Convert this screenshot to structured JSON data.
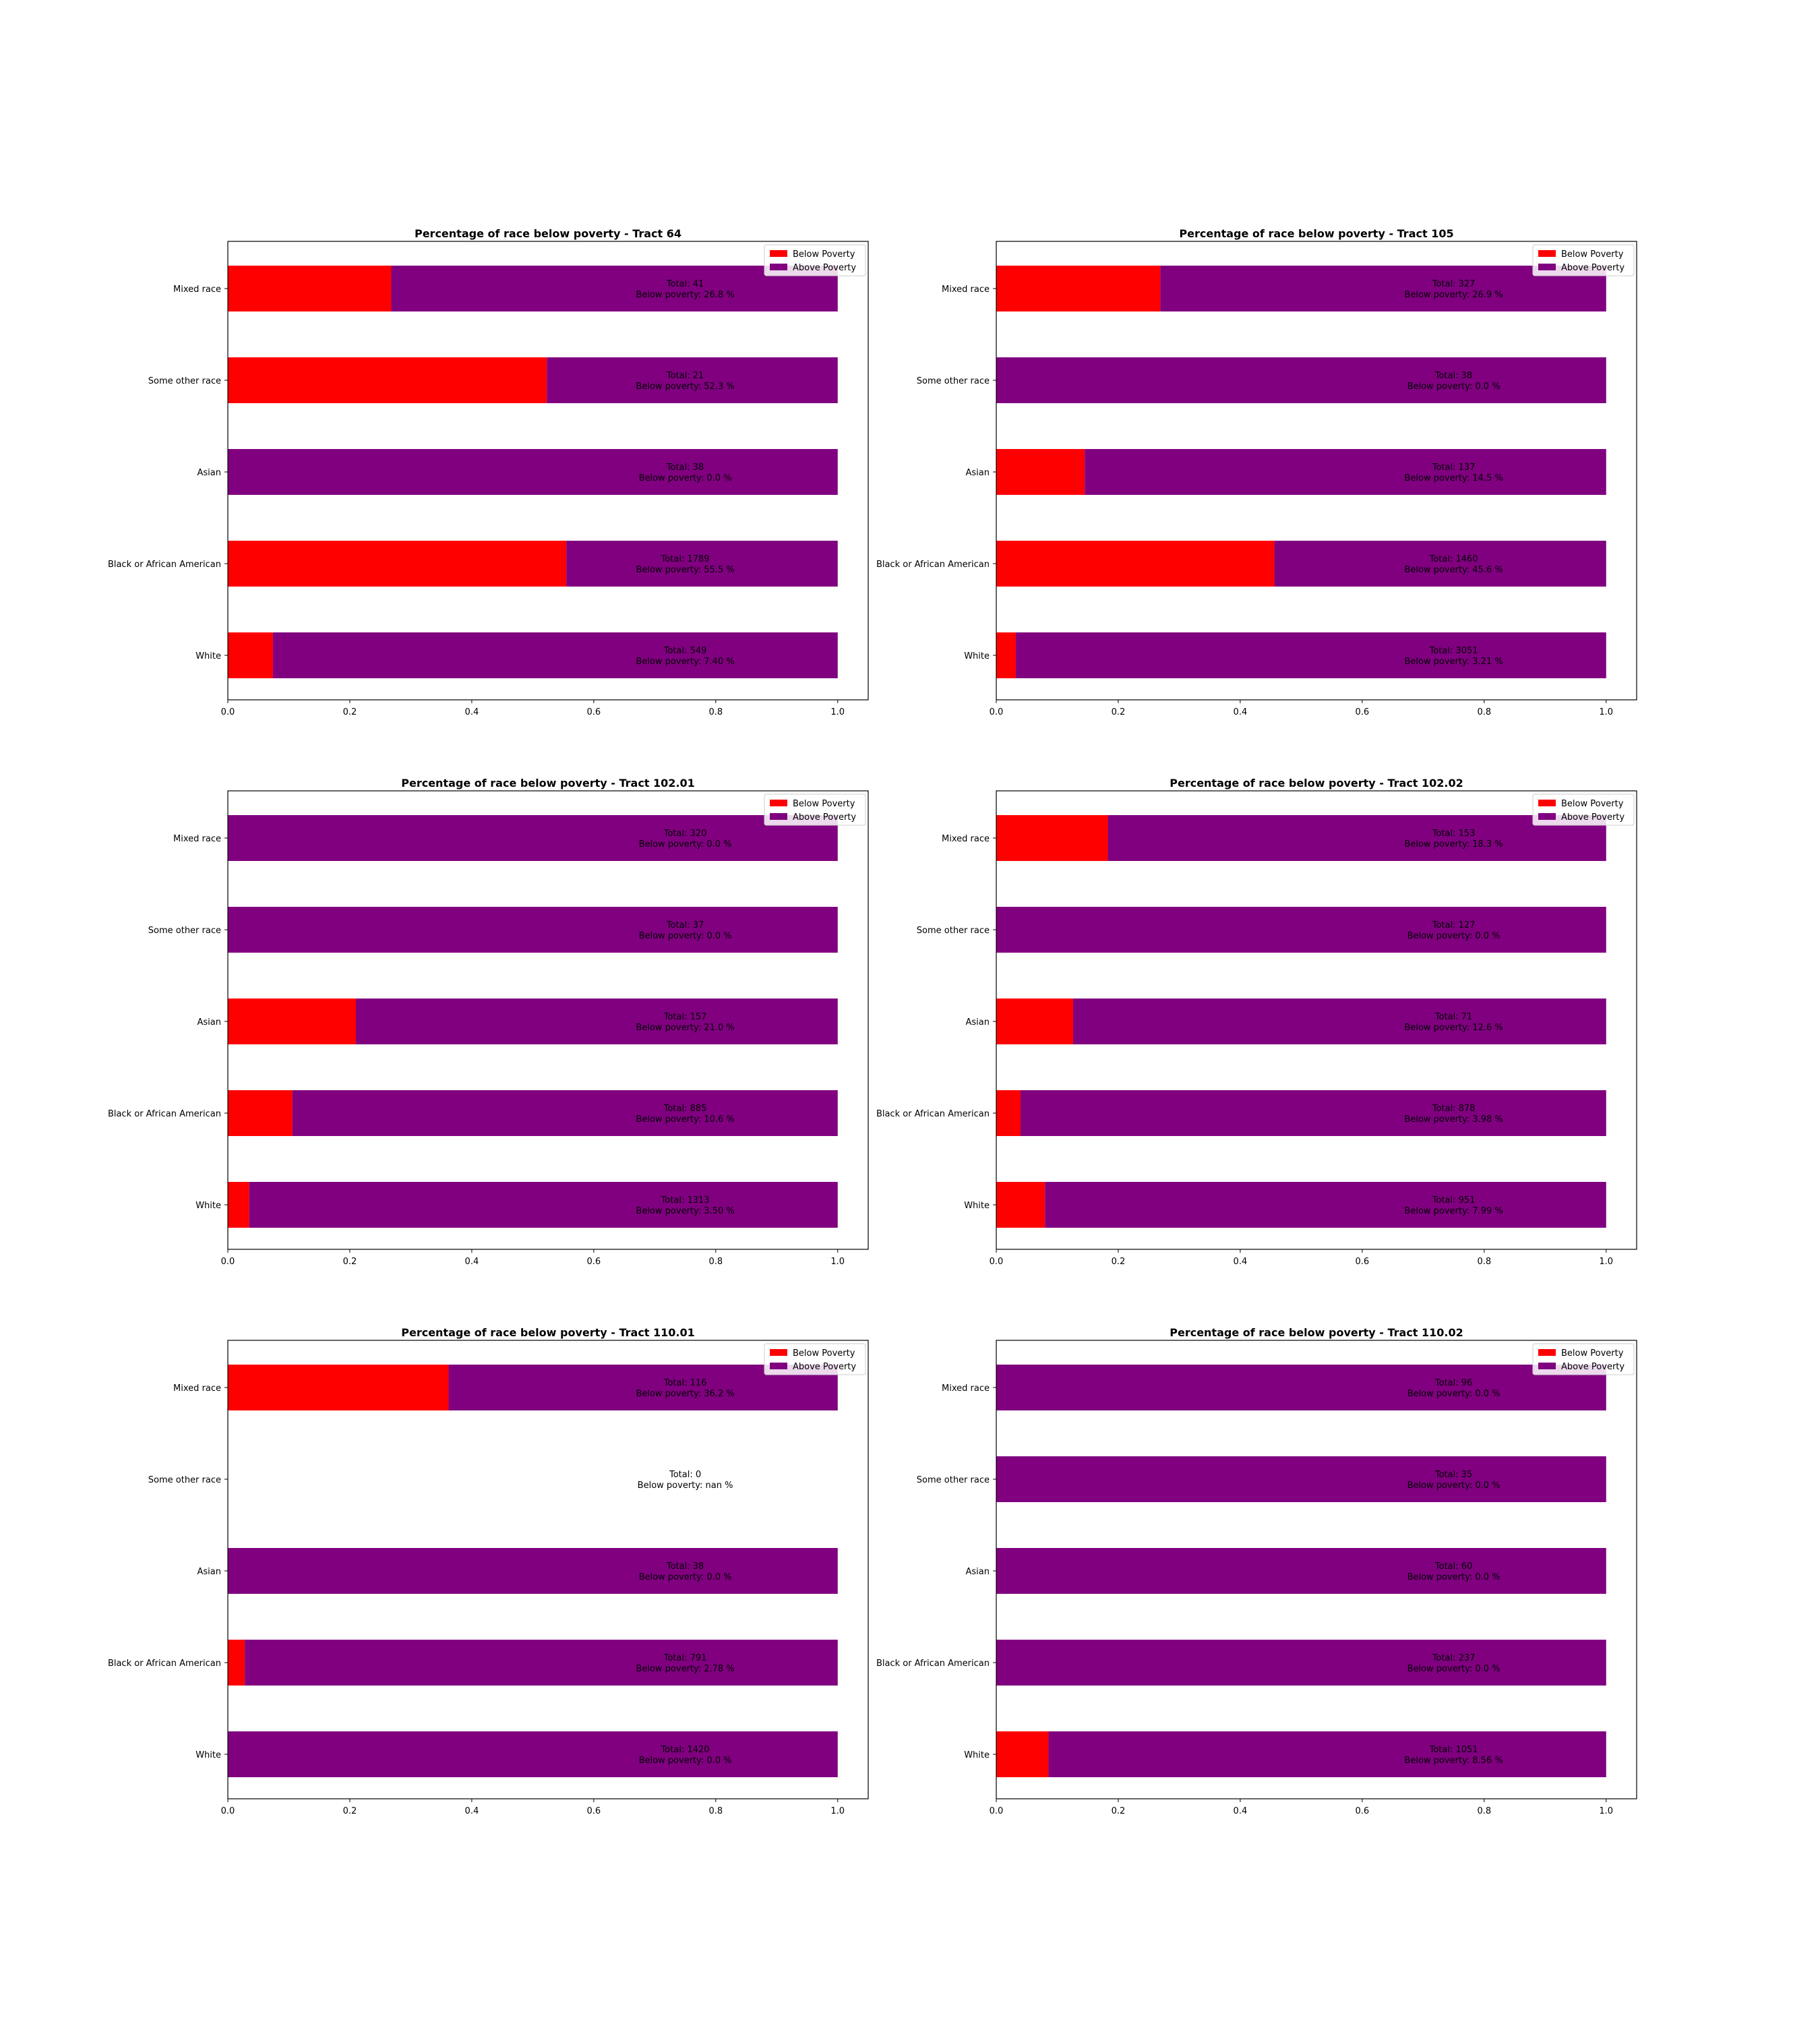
{
  "colors": {
    "below": "#ff0000",
    "above": "#800080",
    "axis": "#000000"
  },
  "legend": {
    "below_label": "Below Poverty",
    "above_label": "Above Poverty",
    "placement": "top-right"
  },
  "chart_data": [
    {
      "type": "bar",
      "orientation": "horizontal-stacked",
      "title": "Percentage of race below poverty - Tract 64",
      "categories": [
        "Mixed race",
        "Some other race",
        "Asian",
        "Black or African American",
        "White"
      ],
      "series": [
        {
          "name": "Below Poverty",
          "values": [
            0.268,
            0.523,
            0.0,
            0.555,
            0.074
          ]
        },
        {
          "name": "Above Poverty",
          "values": [
            0.732,
            0.477,
            1.0,
            0.445,
            0.926
          ]
        }
      ],
      "annotations": [
        {
          "total": "Total: 41",
          "below": "Below poverty: 26.8 %"
        },
        {
          "total": "Total: 21",
          "below": "Below poverty: 52.3 %"
        },
        {
          "total": "Total: 38",
          "below": "Below poverty: 0.0 %"
        },
        {
          "total": "Total: 1789",
          "below": "Below poverty: 55.5 %"
        },
        {
          "total": "Total: 549",
          "below": "Below poverty: 7.40 %"
        }
      ],
      "xlim": [
        0,
        1.05
      ],
      "xticks": [
        "0.0",
        "0.2",
        "0.4",
        "0.6",
        "0.8",
        "1.0"
      ]
    },
    {
      "type": "bar",
      "orientation": "horizontal-stacked",
      "title": "Percentage of race below poverty - Tract 105",
      "categories": [
        "Mixed race",
        "Some other race",
        "Asian",
        "Black or African American",
        "White"
      ],
      "series": [
        {
          "name": "Below Poverty",
          "values": [
            0.269,
            0.0,
            0.145,
            0.456,
            0.0321
          ]
        },
        {
          "name": "Above Poverty",
          "values": [
            0.731,
            1.0,
            0.855,
            0.544,
            0.9679
          ]
        }
      ],
      "annotations": [
        {
          "total": "Total: 327",
          "below": "Below poverty: 26.9 %"
        },
        {
          "total": "Total: 38",
          "below": "Below poverty: 0.0 %"
        },
        {
          "total": "Total: 137",
          "below": "Below poverty: 14.5 %"
        },
        {
          "total": "Total: 1460",
          "below": "Below poverty: 45.6 %"
        },
        {
          "total": "Total: 3051",
          "below": "Below poverty: 3.21 %"
        }
      ],
      "xlim": [
        0,
        1.05
      ],
      "xticks": [
        "0.0",
        "0.2",
        "0.4",
        "0.6",
        "0.8",
        "1.0"
      ]
    },
    {
      "type": "bar",
      "orientation": "horizontal-stacked",
      "title": "Percentage of race below poverty - Tract 102.01",
      "categories": [
        "Mixed race",
        "Some other race",
        "Asian",
        "Black or African American",
        "White"
      ],
      "series": [
        {
          "name": "Below Poverty",
          "values": [
            0.0,
            0.0,
            0.21,
            0.106,
            0.035
          ]
        },
        {
          "name": "Above Poverty",
          "values": [
            1.0,
            1.0,
            0.79,
            0.894,
            0.965
          ]
        }
      ],
      "annotations": [
        {
          "total": "Total: 320",
          "below": "Below poverty: 0.0 %"
        },
        {
          "total": "Total: 37",
          "below": "Below poverty: 0.0 %"
        },
        {
          "total": "Total: 157",
          "below": "Below poverty: 21.0 %"
        },
        {
          "total": "Total: 885",
          "below": "Below poverty: 10.6 %"
        },
        {
          "total": "Total: 1313",
          "below": "Below poverty: 3.50 %"
        }
      ],
      "xlim": [
        0,
        1.05
      ],
      "xticks": [
        "0.0",
        "0.2",
        "0.4",
        "0.6",
        "0.8",
        "1.0"
      ]
    },
    {
      "type": "bar",
      "orientation": "horizontal-stacked",
      "title": "Percentage of race below poverty - Tract 102.02",
      "categories": [
        "Mixed race",
        "Some other race",
        "Asian",
        "Black or African American",
        "White"
      ],
      "series": [
        {
          "name": "Below Poverty",
          "values": [
            0.183,
            0.0,
            0.126,
            0.0398,
            0.0799
          ]
        },
        {
          "name": "Above Poverty",
          "values": [
            0.817,
            1.0,
            0.874,
            0.9602,
            0.9201
          ]
        }
      ],
      "annotations": [
        {
          "total": "Total: 153",
          "below": "Below poverty: 18.3 %"
        },
        {
          "total": "Total: 127",
          "below": "Below poverty: 0.0 %"
        },
        {
          "total": "Total: 71",
          "below": "Below poverty: 12.6 %"
        },
        {
          "total": "Total: 878",
          "below": "Below poverty: 3.98 %"
        },
        {
          "total": "Total: 951",
          "below": "Below poverty: 7.99 %"
        }
      ],
      "xlim": [
        0,
        1.05
      ],
      "xticks": [
        "0.0",
        "0.2",
        "0.4",
        "0.6",
        "0.8",
        "1.0"
      ]
    },
    {
      "type": "bar",
      "orientation": "horizontal-stacked",
      "title": "Percentage of race below poverty - Tract 110.01",
      "categories": [
        "Mixed race",
        "Some other race",
        "Asian",
        "Black or African American",
        "White"
      ],
      "series": [
        {
          "name": "Below Poverty",
          "values": [
            0.362,
            0.0,
            0.0,
            0.0278,
            0.0
          ]
        },
        {
          "name": "Above Poverty",
          "values": [
            0.638,
            0.0,
            1.0,
            0.9722,
            1.0
          ]
        }
      ],
      "annotations": [
        {
          "total": "Total: 116",
          "below": "Below poverty: 36.2 %"
        },
        {
          "total": "Total: 0",
          "below": "Below poverty: nan %"
        },
        {
          "total": "Total: 38",
          "below": "Below poverty: 0.0 %"
        },
        {
          "total": "Total: 791",
          "below": "Below poverty: 2.78 %"
        },
        {
          "total": "Total: 1420",
          "below": "Below poverty: 0.0 %"
        }
      ],
      "xlim": [
        0,
        1.05
      ],
      "xticks": [
        "0.0",
        "0.2",
        "0.4",
        "0.6",
        "0.8",
        "1.0"
      ]
    },
    {
      "type": "bar",
      "orientation": "horizontal-stacked",
      "title": "Percentage of race below poverty - Tract 110.02",
      "categories": [
        "Mixed race",
        "Some other race",
        "Asian",
        "Black or African American",
        "White"
      ],
      "series": [
        {
          "name": "Below Poverty",
          "values": [
            0.0,
            0.0,
            0.0,
            0.0,
            0.0856
          ]
        },
        {
          "name": "Above Poverty",
          "values": [
            1.0,
            1.0,
            1.0,
            1.0,
            0.9144
          ]
        }
      ],
      "annotations": [
        {
          "total": "Total: 96",
          "below": "Below poverty: 0.0 %"
        },
        {
          "total": "Total: 35",
          "below": "Below poverty: 0.0 %"
        },
        {
          "total": "Total: 60",
          "below": "Below poverty: 0.0 %"
        },
        {
          "total": "Total: 237",
          "below": "Below poverty: 0.0 %"
        },
        {
          "total": "Total: 1051",
          "below": "Below poverty: 8.56 %"
        }
      ],
      "xlim": [
        0,
        1.05
      ],
      "xticks": [
        "0.0",
        "0.2",
        "0.4",
        "0.6",
        "0.8",
        "1.0"
      ]
    }
  ]
}
